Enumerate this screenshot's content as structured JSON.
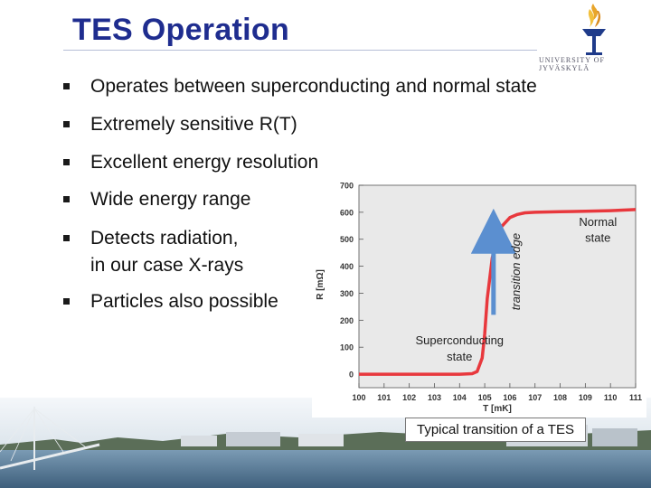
{
  "slide": {
    "title": "TES Operation",
    "logo_text": "UNIVERSITY OF JYVÄSKYLÄ",
    "bullets": [
      "Operates between superconducting and normal state",
      "Extremely sensitive R(T)",
      "Excellent energy resolution",
      "Wide energy range",
      "Detects radiation,",
      "in our case X-rays",
      "Particles also possible"
    ],
    "caption": "Typical transition of a TES"
  },
  "chart_data": {
    "type": "line",
    "xlabel": "T [mK]",
    "ylabel": "R [mΩ]",
    "xlim": [
      100,
      111
    ],
    "ylim": [
      -50,
      700
    ],
    "xticks": [
      "100",
      "101",
      "102",
      "103",
      "104",
      "105",
      "106",
      "107",
      "108",
      "109",
      "110",
      "111"
    ],
    "yticks": [
      "0",
      "100",
      "200",
      "300",
      "400",
      "500",
      "600",
      "700"
    ],
    "grid": false,
    "series": [
      {
        "color": "#e8383d",
        "x": [
          100,
          101,
          102,
          103,
          104,
          104.5,
          104.7,
          104.9,
          105.0,
          105.1,
          105.3,
          105.6,
          106.0,
          106.3,
          106.6,
          107,
          108,
          109,
          110,
          111
        ],
        "y": [
          0,
          0,
          0,
          0,
          0,
          2,
          10,
          60,
          150,
          280,
          430,
          540,
          580,
          592,
          598,
          600,
          602,
          604,
          606,
          610
        ]
      }
    ],
    "annotations": [
      {
        "text": "Superconducting",
        "x": 104.0,
        "y": 110
      },
      {
        "text": "state",
        "x": 104.0,
        "y": 50
      },
      {
        "text": "Normal",
        "x": 109.5,
        "y": 550
      },
      {
        "text": "state",
        "x": 109.5,
        "y": 490
      },
      {
        "text": "transition edge",
        "x": 106.4,
        "y": 380
      }
    ],
    "arrow": {
      "x": 105.35,
      "y_from": 220,
      "y_to": 530
    }
  }
}
